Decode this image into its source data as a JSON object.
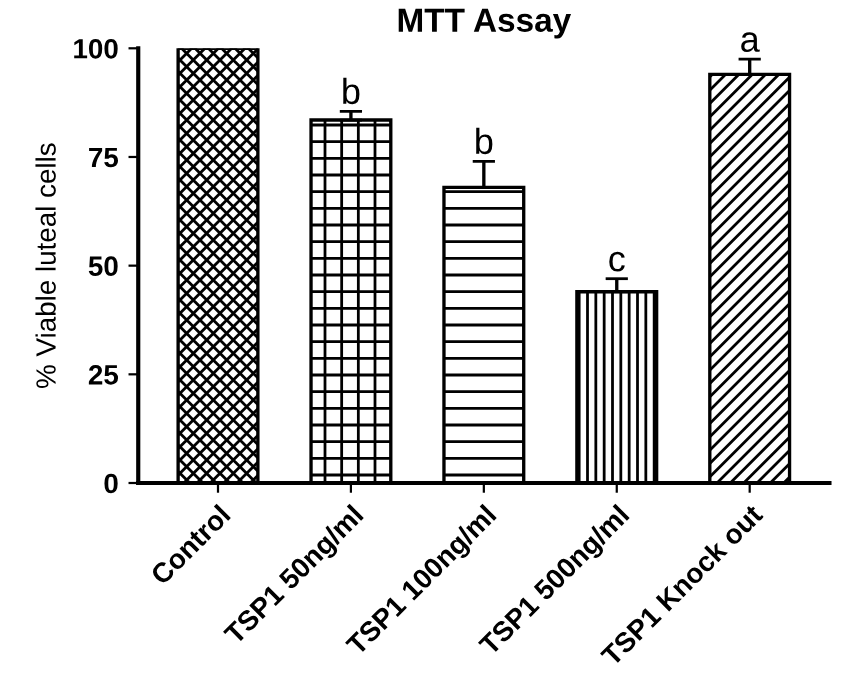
{
  "chart_data": {
    "type": "bar",
    "title": "MTT Assay",
    "ylabel": "% Viable luteal cells",
    "categories": [
      "Control",
      "TSP1 50ng/ml",
      "TSP1 100ng/ml",
      "TSP1 500ng/ml",
      "TSP1 Knock out"
    ],
    "values": [
      100,
      83.5,
      68,
      44,
      94
    ],
    "errors": [
      null,
      2,
      6,
      3,
      3.5
    ],
    "color": "#000000",
    "ylim": [
      0,
      100
    ],
    "yticks": [
      0,
      25,
      50,
      75,
      100
    ],
    "grid": false,
    "annotations": [
      {
        "text": "b",
        "x": "TSP1 50ng/ml",
        "y": 85.5
      },
      {
        "text": "b",
        "x": "TSP1 100ng/ml",
        "y": 74
      },
      {
        "text": "c",
        "x": "TSP1 500ng/ml",
        "y": 47
      },
      {
        "text": "a",
        "x": "TSP1 Knock out",
        "y": 97.5
      }
    ]
  }
}
